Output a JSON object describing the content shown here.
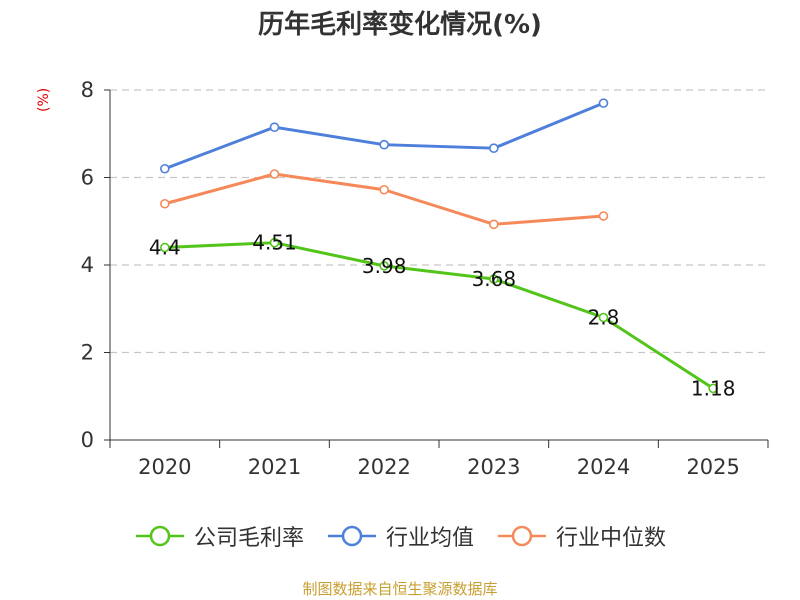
{
  "chart_data": {
    "type": "line",
    "title": "历年毛利率变化情况(%)",
    "ylabel": "(%)",
    "xlabel": "",
    "categories": [
      "2020",
      "2021",
      "2022",
      "2023",
      "2024",
      "2025"
    ],
    "ylim": [
      0,
      8
    ],
    "yticks": [
      0,
      2,
      4,
      6,
      8
    ],
    "grid": true,
    "legend_position": "bottom",
    "series": [
      {
        "name": "公司毛利率",
        "color": "#52c41a",
        "values": [
          4.4,
          4.51,
          3.98,
          3.68,
          2.8,
          1.18
        ],
        "data_labels": [
          "4.4",
          "4.51",
          "3.98",
          "3.68",
          "2.8",
          "1.18"
        ]
      },
      {
        "name": "行业均值",
        "color": "#4e7fda",
        "values": [
          6.2,
          7.15,
          6.75,
          6.67,
          7.7,
          null
        ]
      },
      {
        "name": "行业中位数",
        "color": "#f5895a",
        "values": [
          5.4,
          6.08,
          5.72,
          4.93,
          5.12,
          null
        ]
      }
    ]
  },
  "footer": {
    "source": "制图数据来自恒生聚源数据库"
  }
}
